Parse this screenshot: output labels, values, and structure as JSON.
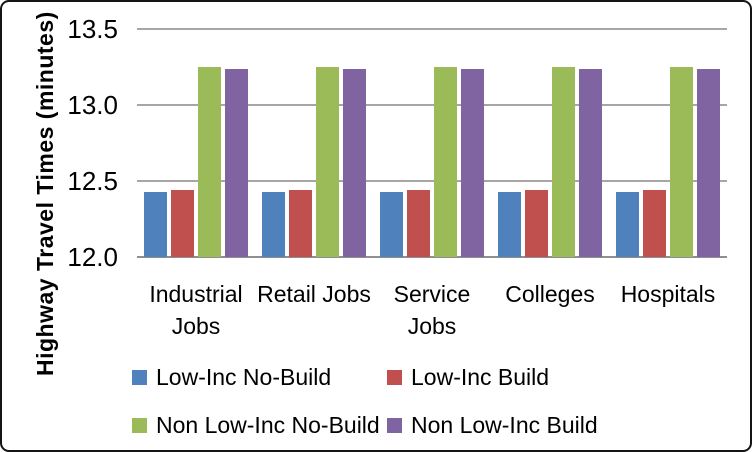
{
  "chart_data": {
    "type": "bar",
    "title": "",
    "xlabel": "",
    "ylabel": "Highway Travel Times (minutes)",
    "ylim": [
      12.0,
      13.5
    ],
    "grid": true,
    "legend_position": "bottom",
    "yticks": [
      {
        "value": 13.5,
        "label": "13.5"
      },
      {
        "value": 13.0,
        "label": "13.0"
      },
      {
        "value": 12.5,
        "label": "12.5"
      },
      {
        "value": 12.0,
        "label": "12.0"
      }
    ],
    "categories": [
      "Industrial\nJobs",
      "Retail Jobs",
      "Service\nJobs",
      "Colleges",
      "Hospitals"
    ],
    "series": [
      {
        "name": "Low-Inc No-Build",
        "color": "#4F81BD",
        "values": [
          12.43,
          12.43,
          12.43,
          12.43,
          12.43
        ]
      },
      {
        "name": "Low-Inc Build",
        "color": "#C0504D",
        "values": [
          12.44,
          12.44,
          12.44,
          12.44,
          12.44
        ]
      },
      {
        "name": "Non Low-Inc No-Build",
        "color": "#9BBB59",
        "values": [
          13.25,
          13.25,
          13.25,
          13.25,
          13.25
        ]
      },
      {
        "name": "Non Low-Inc Build",
        "color": "#8064A2",
        "values": [
          13.24,
          13.24,
          13.24,
          13.24,
          13.24
        ]
      }
    ],
    "colors": {
      "gridline": "#A6A6A6",
      "axis_line": "#8F8F8F",
      "border": "#141414",
      "background": "#FFFFFF",
      "text": "#000000"
    }
  }
}
